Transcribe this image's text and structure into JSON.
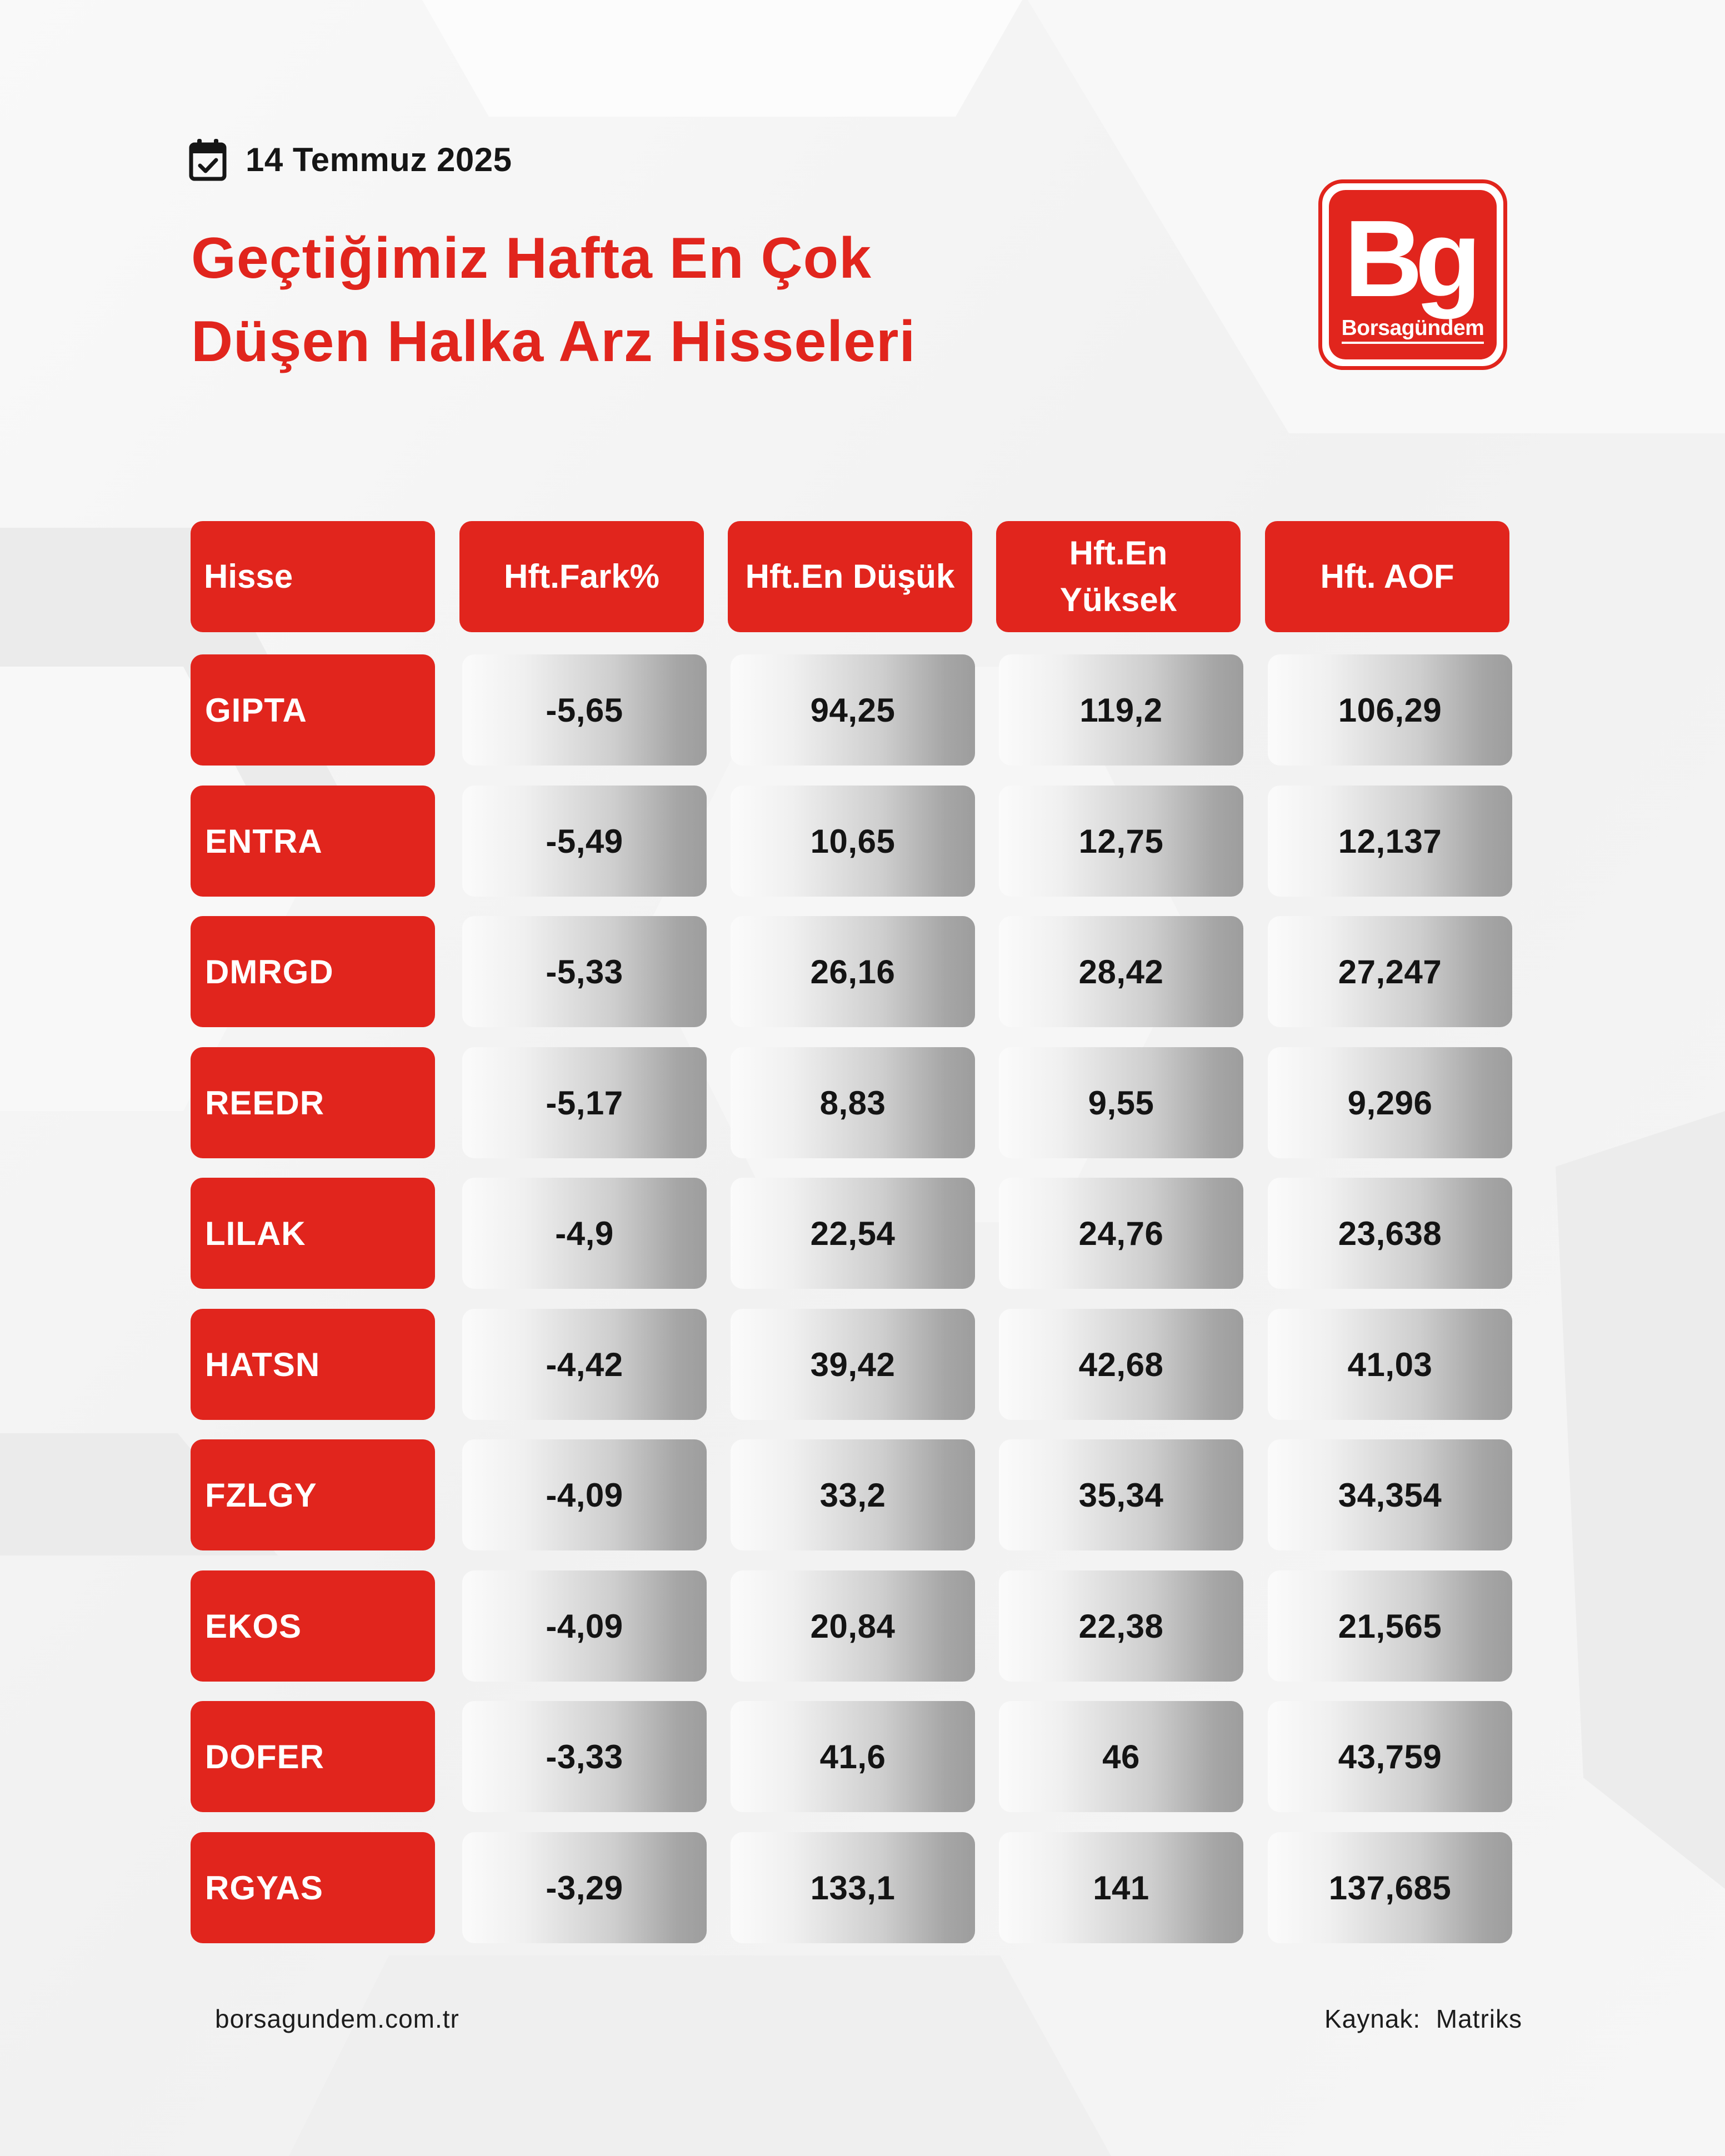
{
  "header": {
    "date": "14 Temmuz 2025",
    "title_line1": "Geçtiğimiz Hafta En Çok",
    "title_line2": "Düşen Halka Arz Hisseleri"
  },
  "logo": {
    "mark": "Bg",
    "word": "Borsagündem"
  },
  "table": {
    "headers": [
      "Hisse",
      "Hft.Fark%",
      "Hft.En Düşük",
      "Hft.En\nYüksek",
      "Hft. AOF"
    ],
    "rows": [
      [
        "GIPTA",
        "-5,65",
        "94,25",
        "119,2",
        "106,29"
      ],
      [
        "ENTRA",
        "-5,49",
        "10,65",
        "12,75",
        "12,137"
      ],
      [
        "DMRGD",
        "-5,33",
        "26,16",
        "28,42",
        "27,247"
      ],
      [
        "REEDR",
        "-5,17",
        "8,83",
        "9,55",
        "9,296"
      ],
      [
        "LILAK",
        "-4,9",
        "22,54",
        "24,76",
        "23,638"
      ],
      [
        "HATSN",
        "-4,42",
        "39,42",
        "42,68",
        "41,03"
      ],
      [
        "FZLGY",
        "-4,09",
        "33,2",
        "35,34",
        "34,354"
      ],
      [
        "EKOS",
        "-4,09",
        "20,84",
        "22,38",
        "21,565"
      ],
      [
        "DOFER",
        "-3,33",
        "41,6",
        "46",
        "43,759"
      ],
      [
        "RGYAS",
        "-3,29",
        "133,1",
        "141",
        "137,685"
      ]
    ]
  },
  "footer": {
    "website": "borsagundem.com.tr",
    "source": "Kaynak:  Matriks"
  },
  "colors": {
    "accent": "#e1251d",
    "text_dark": "#141414",
    "background": "#f3f3f3"
  },
  "icons": {
    "date": "calendar-check-icon"
  }
}
